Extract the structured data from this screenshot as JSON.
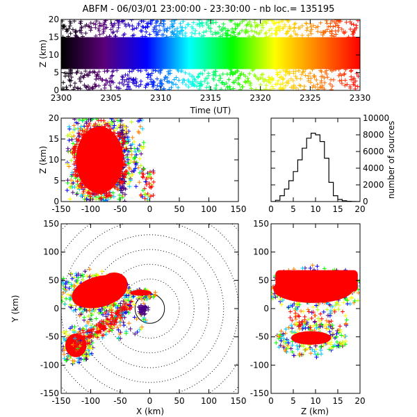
{
  "figure_title": "ABFM - 06/03/01 23:00:00 - 23:30:00 - nb loc.= 135195",
  "colors": {
    "final": "#ff0000",
    "axis": "#000000",
    "range_ring": "#000000"
  },
  "chart_data": [
    {
      "id": "time-height",
      "type": "scatter",
      "marker": "plus",
      "xlabel": "Time (UT)",
      "ylabel": "Z (km)",
      "xlim": [
        2300,
        2330
      ],
      "ylim": [
        0,
        20
      ],
      "x_ticks": [
        2300,
        2305,
        2310,
        2315,
        2320,
        2325,
        2330
      ],
      "y_ticks": [
        0,
        5,
        10,
        15,
        20
      ],
      "color_by": "time",
      "colormap": [
        "#000000",
        "#5a0078",
        "#0000ff",
        "#00ffff",
        "#00ff00",
        "#ffff00",
        "#ff8000",
        "#ff0000"
      ],
      "dense_band_z": [
        6,
        15
      ]
    },
    {
      "id": "x-z",
      "type": "scatter",
      "marker": "plus",
      "xlabel": "",
      "ylabel": "Z (km)",
      "xlim": [
        -150,
        150
      ],
      "ylim": [
        0,
        20
      ],
      "x_ticks": [
        -150,
        -100,
        -50,
        0,
        50,
        100,
        150
      ],
      "y_ticks": [
        0,
        5,
        10,
        15,
        20
      ],
      "color_by": "time",
      "core": {
        "x_range": [
          -125,
          -45
        ],
        "z_range": [
          2,
          18
        ]
      }
    },
    {
      "id": "height-histogram",
      "type": "line",
      "xlabel": "",
      "ylabel": "number of sources",
      "xlim": [
        0,
        20
      ],
      "ylim": [
        0,
        10000
      ],
      "x_ticks": [
        0,
        5,
        10,
        15,
        20
      ],
      "y_ticks": [
        0,
        2000,
        4000,
        6000,
        8000,
        10000
      ],
      "y_axis_side": "right",
      "x": [
        0.5,
        1.5,
        2.5,
        3.5,
        4.5,
        5.5,
        6.5,
        7.5,
        8.5,
        9.5,
        10.5,
        11.5,
        12.5,
        13.5,
        14.5,
        15.5,
        16.5,
        17.5,
        18.5,
        19.5
      ],
      "values": [
        0,
        150,
        700,
        1500,
        2500,
        3600,
        5000,
        6400,
        7600,
        8200,
        8000,
        7200,
        5200,
        2300,
        700,
        250,
        100,
        30,
        10,
        0
      ]
    },
    {
      "id": "plan-view",
      "type": "scatter",
      "marker": "plus",
      "xlabel": "X (km)",
      "ylabel": "Y (km)",
      "xlim": [
        -150,
        150
      ],
      "ylim": [
        -150,
        150
      ],
      "x_ticks": [
        -150,
        -100,
        -50,
        0,
        50,
        100,
        150
      ],
      "y_ticks": [
        -150,
        -100,
        -50,
        0,
        50,
        100,
        150
      ],
      "color_by": "time",
      "range_rings_km": [
        25,
        50,
        75,
        100,
        125,
        150,
        175,
        200
      ],
      "solid_ring_km": 25
    },
    {
      "id": "z-y",
      "type": "scatter",
      "marker": "plus",
      "xlabel": "Z (km)",
      "ylabel": "",
      "xlim": [
        0,
        20
      ],
      "ylim": [
        -150,
        150
      ],
      "x_ticks": [
        0,
        5,
        10,
        15,
        20
      ],
      "y_ticks": [
        -150,
        -100,
        -50,
        0,
        50,
        100,
        150
      ],
      "color_by": "time"
    }
  ]
}
